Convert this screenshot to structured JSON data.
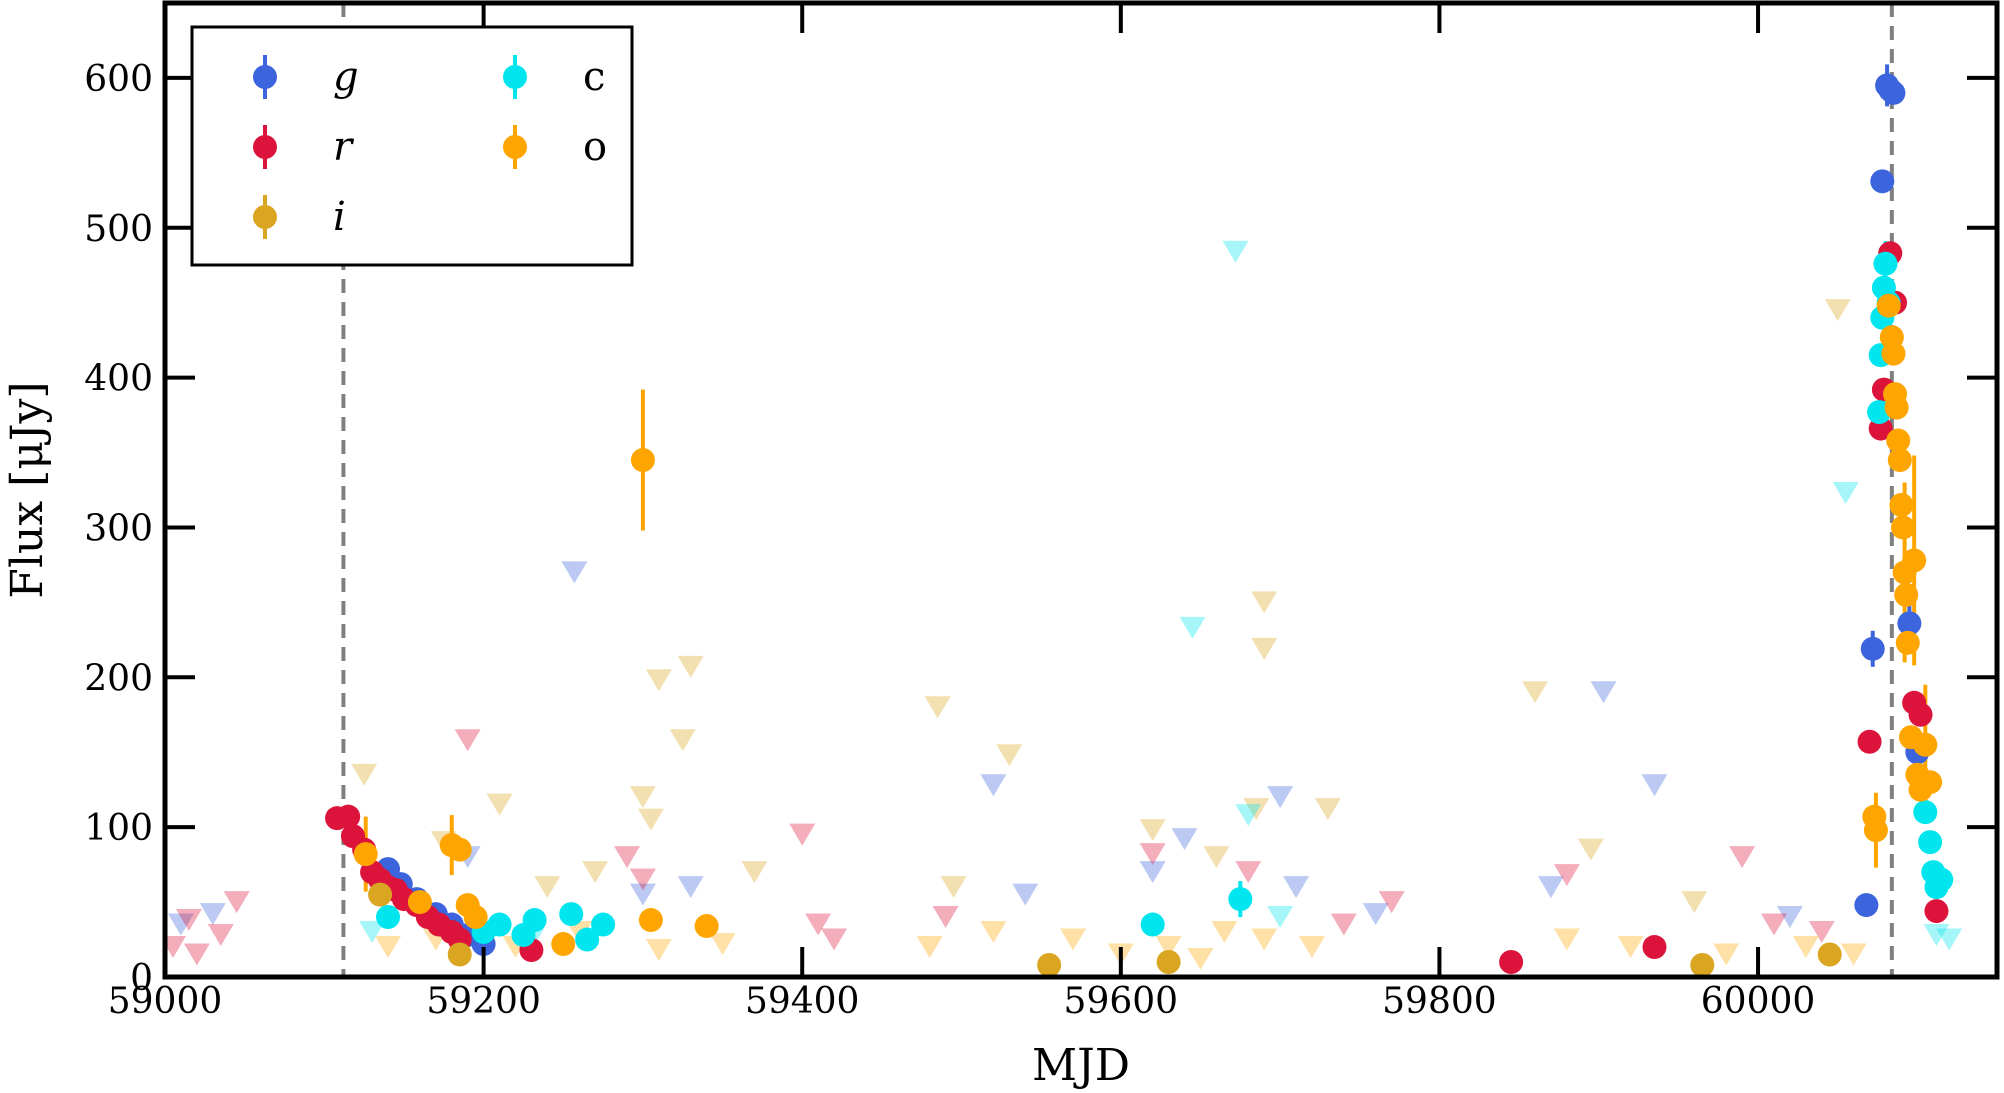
{
  "chart_data": {
    "type": "scatter",
    "title": "",
    "xlabel": "MJD",
    "ylabel": "Flux [μJy]",
    "xlim": [
      59000,
      60150
    ],
    "ylim": [
      0,
      650
    ],
    "xticks": [
      59000,
      59200,
      59400,
      59600,
      59800,
      60000
    ],
    "yticks": [
      0,
      100,
      200,
      300,
      400,
      500,
      600
    ],
    "grid": false,
    "legend_position": "top-left",
    "vertical_lines": [
      59112,
      60084
    ],
    "series": [
      {
        "name": "g",
        "color": "#3c64dc",
        "detections": [
          {
            "x": 59140,
            "y": 72
          },
          {
            "x": 59148,
            "y": 62
          },
          {
            "x": 59158,
            "y": 52
          },
          {
            "x": 59170,
            "y": 42
          },
          {
            "x": 59180,
            "y": 35
          },
          {
            "x": 59190,
            "y": 28
          },
          {
            "x": 59200,
            "y": 22
          },
          {
            "x": 60068,
            "y": 48
          },
          {
            "x": 60072,
            "y": 219
          },
          {
            "x": 60078,
            "y": 531
          },
          {
            "x": 60081,
            "y": 595
          },
          {
            "x": 60083,
            "y": 592
          },
          {
            "x": 60085,
            "y": 590
          },
          {
            "x": 60095,
            "y": 236
          },
          {
            "x": 60100,
            "y": 150
          }
        ],
        "errors": [
          [
            60072,
            12
          ],
          [
            60081,
            14
          ],
          [
            60095,
            12
          ]
        ],
        "upper_limits": [
          {
            "x": 59010,
            "y": 35
          },
          {
            "x": 59030,
            "y": 42
          },
          {
            "x": 59190,
            "y": 80
          },
          {
            "x": 59257,
            "y": 270
          },
          {
            "x": 59300,
            "y": 55
          },
          {
            "x": 59330,
            "y": 60
          },
          {
            "x": 59520,
            "y": 128
          },
          {
            "x": 59540,
            "y": 55
          },
          {
            "x": 59620,
            "y": 70
          },
          {
            "x": 59640,
            "y": 92
          },
          {
            "x": 59700,
            "y": 120
          },
          {
            "x": 59710,
            "y": 60
          },
          {
            "x": 59760,
            "y": 42
          },
          {
            "x": 59870,
            "y": 60
          },
          {
            "x": 59903,
            "y": 190
          },
          {
            "x": 59935,
            "y": 128
          },
          {
            "x": 60020,
            "y": 40
          }
        ]
      },
      {
        "name": "r",
        "color": "#dc143c",
        "detections": [
          {
            "x": 59108,
            "y": 106
          },
          {
            "x": 59115,
            "y": 107
          },
          {
            "x": 59118,
            "y": 94
          },
          {
            "x": 59125,
            "y": 85
          },
          {
            "x": 59130,
            "y": 70
          },
          {
            "x": 59135,
            "y": 65
          },
          {
            "x": 59140,
            "y": 60
          },
          {
            "x": 59145,
            "y": 58
          },
          {
            "x": 59150,
            "y": 52
          },
          {
            "x": 59158,
            "y": 48
          },
          {
            "x": 59165,
            "y": 40
          },
          {
            "x": 59172,
            "y": 35
          },
          {
            "x": 59180,
            "y": 30
          },
          {
            "x": 59185,
            "y": 25
          },
          {
            "x": 59230,
            "y": 18
          },
          {
            "x": 59845,
            "y": 10
          },
          {
            "x": 59935,
            "y": 20
          },
          {
            "x": 60070,
            "y": 157
          },
          {
            "x": 60077,
            "y": 366
          },
          {
            "x": 60079,
            "y": 392
          },
          {
            "x": 60083,
            "y": 483
          },
          {
            "x": 60086,
            "y": 450
          },
          {
            "x": 60098,
            "y": 183
          },
          {
            "x": 60102,
            "y": 175
          },
          {
            "x": 60112,
            "y": 44
          }
        ],
        "errors": [],
        "upper_limits": [
          {
            "x": 59005,
            "y": 20
          },
          {
            "x": 59015,
            "y": 38
          },
          {
            "x": 59020,
            "y": 15
          },
          {
            "x": 59035,
            "y": 28
          },
          {
            "x": 59045,
            "y": 50
          },
          {
            "x": 59190,
            "y": 158
          },
          {
            "x": 59290,
            "y": 80
          },
          {
            "x": 59300,
            "y": 65
          },
          {
            "x": 59400,
            "y": 95
          },
          {
            "x": 59410,
            "y": 35
          },
          {
            "x": 59420,
            "y": 25
          },
          {
            "x": 59490,
            "y": 40
          },
          {
            "x": 59620,
            "y": 82
          },
          {
            "x": 59680,
            "y": 70
          },
          {
            "x": 59740,
            "y": 35
          },
          {
            "x": 59770,
            "y": 50
          },
          {
            "x": 59880,
            "y": 68
          },
          {
            "x": 59990,
            "y": 80
          },
          {
            "x": 60010,
            "y": 35
          },
          {
            "x": 60040,
            "y": 30
          }
        ]
      },
      {
        "name": "i",
        "color": "#daa520",
        "detections": [
          {
            "x": 59135,
            "y": 55
          },
          {
            "x": 59185,
            "y": 15
          },
          {
            "x": 59555,
            "y": 8
          },
          {
            "x": 59630,
            "y": 10
          },
          {
            "x": 59965,
            "y": 8
          },
          {
            "x": 60045,
            "y": 15
          }
        ],
        "errors": [],
        "upper_limits": [
          {
            "x": 59125,
            "y": 135
          },
          {
            "x": 59175,
            "y": 90
          },
          {
            "x": 59210,
            "y": 115
          },
          {
            "x": 59240,
            "y": 60
          },
          {
            "x": 59270,
            "y": 70
          },
          {
            "x": 59300,
            "y": 120
          },
          {
            "x": 59305,
            "y": 105
          },
          {
            "x": 59310,
            "y": 198
          },
          {
            "x": 59330,
            "y": 207
          },
          {
            "x": 59325,
            "y": 158
          },
          {
            "x": 59370,
            "y": 70
          },
          {
            "x": 59485,
            "y": 180
          },
          {
            "x": 59495,
            "y": 60
          },
          {
            "x": 59530,
            "y": 148
          },
          {
            "x": 59620,
            "y": 98
          },
          {
            "x": 59660,
            "y": 80
          },
          {
            "x": 59690,
            "y": 250
          },
          {
            "x": 59690,
            "y": 219
          },
          {
            "x": 59685,
            "y": 112
          },
          {
            "x": 59730,
            "y": 112
          },
          {
            "x": 59860,
            "y": 190
          },
          {
            "x": 59895,
            "y": 85
          },
          {
            "x": 59960,
            "y": 50
          },
          {
            "x": 60050,
            "y": 445
          }
        ]
      },
      {
        "name": "c",
        "color": "#00e5ee",
        "detections": [
          {
            "x": 59140,
            "y": 40
          },
          {
            "x": 59200,
            "y": 30
          },
          {
            "x": 59210,
            "y": 35
          },
          {
            "x": 59225,
            "y": 28
          },
          {
            "x": 59232,
            "y": 38
          },
          {
            "x": 59255,
            "y": 42
          },
          {
            "x": 59265,
            "y": 25
          },
          {
            "x": 59275,
            "y": 35
          },
          {
            "x": 59620,
            "y": 35
          },
          {
            "x": 59675,
            "y": 52
          },
          {
            "x": 60076,
            "y": 377
          },
          {
            "x": 60077,
            "y": 415
          },
          {
            "x": 60078,
            "y": 440
          },
          {
            "x": 60079,
            "y": 460
          },
          {
            "x": 60080,
            "y": 476
          },
          {
            "x": 60082,
            "y": 450
          },
          {
            "x": 60105,
            "y": 110
          },
          {
            "x": 60108,
            "y": 90
          },
          {
            "x": 60110,
            "y": 70
          },
          {
            "x": 60112,
            "y": 60
          },
          {
            "x": 60115,
            "y": 65
          }
        ],
        "errors": [
          [
            59675,
            12
          ],
          [
            60080,
            15
          ]
        ],
        "upper_limits": [
          {
            "x": 59130,
            "y": 30
          },
          {
            "x": 59180,
            "y": 28
          },
          {
            "x": 59230,
            "y": 25
          },
          {
            "x": 59645,
            "y": 233
          },
          {
            "x": 59672,
            "y": 484
          },
          {
            "x": 59680,
            "y": 108
          },
          {
            "x": 59700,
            "y": 40
          },
          {
            "x": 60055,
            "y": 323
          },
          {
            "x": 60112,
            "y": 28
          },
          {
            "x": 60120,
            "y": 25
          }
        ]
      },
      {
        "name": "o",
        "color": "#ffa500",
        "detections": [
          {
            "x": 59126,
            "y": 82
          },
          {
            "x": 59160,
            "y": 50
          },
          {
            "x": 59180,
            "y": 88
          },
          {
            "x": 59185,
            "y": 85
          },
          {
            "x": 59190,
            "y": 48
          },
          {
            "x": 59195,
            "y": 40
          },
          {
            "x": 59250,
            "y": 22
          },
          {
            "x": 59300,
            "y": 345
          },
          {
            "x": 59305,
            "y": 38
          },
          {
            "x": 59340,
            "y": 34
          },
          {
            "x": 60073,
            "y": 107
          },
          {
            "x": 60074,
            "y": 98
          },
          {
            "x": 60082,
            "y": 448
          },
          {
            "x": 60084,
            "y": 427
          },
          {
            "x": 60085,
            "y": 416
          },
          {
            "x": 60086,
            "y": 389
          },
          {
            "x": 60087,
            "y": 380
          },
          {
            "x": 60088,
            "y": 358
          },
          {
            "x": 60089,
            "y": 345
          },
          {
            "x": 60090,
            "y": 315
          },
          {
            "x": 60091,
            "y": 300
          },
          {
            "x": 60092,
            "y": 270
          },
          {
            "x": 60093,
            "y": 255
          },
          {
            "x": 60094,
            "y": 223
          },
          {
            "x": 60096,
            "y": 160
          },
          {
            "x": 60098,
            "y": 278
          },
          {
            "x": 60100,
            "y": 135
          },
          {
            "x": 60102,
            "y": 125
          },
          {
            "x": 60105,
            "y": 155
          },
          {
            "x": 60108,
            "y": 130
          }
        ],
        "errors": [
          [
            59126,
            25
          ],
          [
            59180,
            20
          ],
          [
            59300,
            47
          ],
          [
            60074,
            25
          ],
          [
            60092,
            60
          ],
          [
            60098,
            70
          ],
          [
            60105,
            40
          ]
        ],
        "upper_limits": [
          {
            "x": 59140,
            "y": 20
          },
          {
            "x": 59170,
            "y": 25
          },
          {
            "x": 59220,
            "y": 20
          },
          {
            "x": 59260,
            "y": 30
          },
          {
            "x": 59310,
            "y": 18
          },
          {
            "x": 59350,
            "y": 22
          },
          {
            "x": 59480,
            "y": 20
          },
          {
            "x": 59520,
            "y": 30
          },
          {
            "x": 59570,
            "y": 25
          },
          {
            "x": 59600,
            "y": 15
          },
          {
            "x": 59630,
            "y": 20
          },
          {
            "x": 59650,
            "y": 12
          },
          {
            "x": 59665,
            "y": 30
          },
          {
            "x": 59690,
            "y": 25
          },
          {
            "x": 59720,
            "y": 20
          },
          {
            "x": 59880,
            "y": 25
          },
          {
            "x": 59920,
            "y": 20
          },
          {
            "x": 59980,
            "y": 15
          },
          {
            "x": 60030,
            "y": 20
          },
          {
            "x": 60060,
            "y": 15
          }
        ]
      }
    ]
  }
}
